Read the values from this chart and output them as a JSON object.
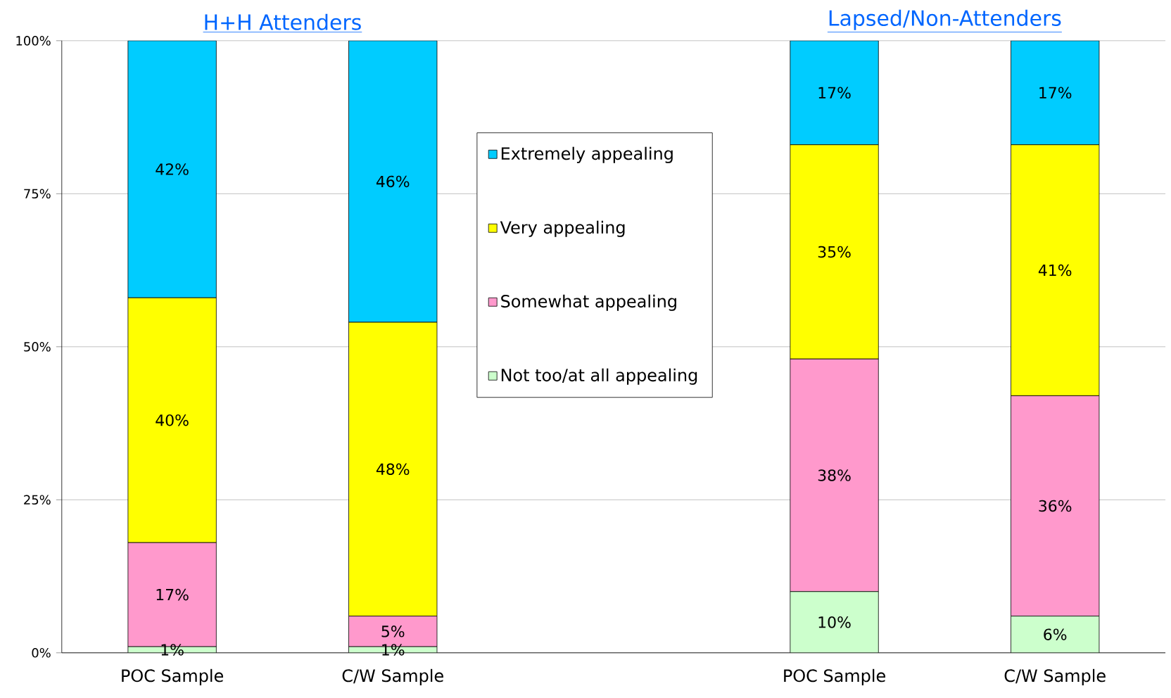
{
  "chart_data": {
    "type": "bar",
    "stacked": true,
    "categories": [
      "POC Sample",
      "C/W Sample",
      null,
      "POC Sample",
      "C/W Sample"
    ],
    "series": [
      {
        "name": "Not too/at all appealing",
        "color": "#ccffcc",
        "values": [
          1,
          1,
          null,
          10,
          6
        ],
        "value_labels": [
          "1%",
          "1%",
          null,
          "10%",
          "6%"
        ]
      },
      {
        "name": "Somewhat appealing",
        "color": "#ff99cc",
        "values": [
          17,
          5,
          null,
          38,
          36
        ],
        "value_labels": [
          "17%",
          "5%",
          null,
          "38%",
          "36%"
        ]
      },
      {
        "name": "Very appealing",
        "color": "#ffff00",
        "values": [
          40,
          48,
          null,
          35,
          41
        ],
        "value_labels": [
          "40%",
          "48%",
          null,
          "35%",
          "41%"
        ]
      },
      {
        "name": "Extremely appealing",
        "color": "#00ccff",
        "values": [
          42,
          46,
          null,
          17,
          17
        ],
        "value_labels": [
          "42%",
          "46%",
          null,
          "17%",
          "17%"
        ]
      }
    ],
    "annotations": [
      "H+H Attenders",
      "Lapsed/Non-Attenders"
    ],
    "ylim": [
      0,
      100
    ],
    "yticks": [
      {
        "value": 0,
        "label": "0%"
      },
      {
        "value": 25,
        "label": "25%"
      },
      {
        "value": 50,
        "label": "50%"
      },
      {
        "value": 75,
        "label": "75%"
      },
      {
        "value": 100,
        "label": "100%"
      }
    ],
    "grid": "y",
    "legend": "center"
  }
}
